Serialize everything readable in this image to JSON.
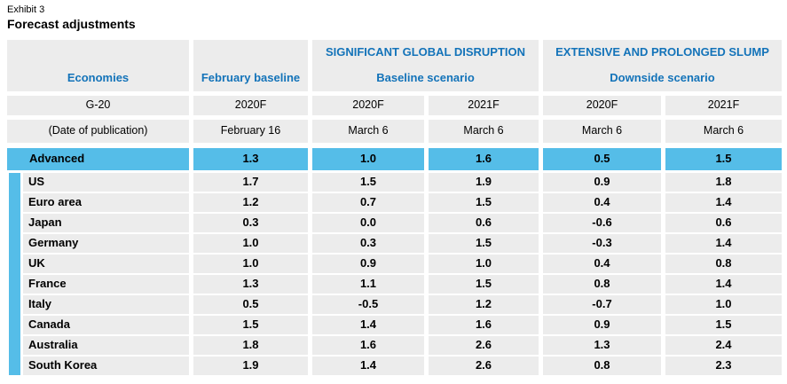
{
  "exhibit": {
    "label": "Exhibit 3",
    "title": "Forecast adjustments"
  },
  "colors": {
    "highlight": "#55bde8",
    "header_text": "#1373b9",
    "cell_bg": "#ececec",
    "text": "#000000"
  },
  "table": {
    "col_headers": {
      "economies": "Economies",
      "february_baseline": "February baseline",
      "group1_title": "SIGNIFICANT GLOBAL DISRUPTION",
      "group1_subtitle": "Baseline scenario",
      "group2_title": "EXTENSIVE AND PROLONGED SLUMP",
      "group2_subtitle": "Downside scenario"
    },
    "subheader": {
      "label": "G-20",
      "cols": [
        "2020F",
        "2020F",
        "2021F",
        "2020F",
        "2021F"
      ]
    },
    "dates": {
      "label": "(Date of publication)",
      "cols": [
        "February 16",
        "March 6",
        "March 6",
        "March 6",
        "March 6"
      ]
    },
    "highlight_row": {
      "label": "Advanced",
      "values": [
        "1.3",
        "1.0",
        "1.6",
        "0.5",
        "1.5"
      ]
    },
    "rows": [
      {
        "label": "US",
        "values": [
          "1.7",
          "1.5",
          "1.9",
          "0.9",
          "1.8"
        ]
      },
      {
        "label": "Euro area",
        "values": [
          "1.2",
          "0.7",
          "1.5",
          "0.4",
          "1.4"
        ]
      },
      {
        "label": "Japan",
        "values": [
          "0.3",
          "0.0",
          "0.6",
          "-0.6",
          "0.6"
        ]
      },
      {
        "label": "Germany",
        "values": [
          "1.0",
          "0.3",
          "1.5",
          "-0.3",
          "1.4"
        ]
      },
      {
        "label": "UK",
        "values": [
          "1.0",
          "0.9",
          "1.0",
          "0.4",
          "0.8"
        ]
      },
      {
        "label": "France",
        "values": [
          "1.3",
          "1.1",
          "1.5",
          "0.8",
          "1.4"
        ]
      },
      {
        "label": "Italy",
        "values": [
          "0.5",
          "-0.5",
          "1.2",
          "-0.7",
          "1.0"
        ]
      },
      {
        "label": "Canada",
        "values": [
          "1.5",
          "1.4",
          "1.6",
          "0.9",
          "1.5"
        ]
      },
      {
        "label": "Australia",
        "values": [
          "1.8",
          "1.6",
          "2.6",
          "1.3",
          "2.4"
        ]
      },
      {
        "label": "South Korea",
        "values": [
          "1.9",
          "1.4",
          "2.6",
          "0.8",
          "2.3"
        ]
      }
    ]
  }
}
